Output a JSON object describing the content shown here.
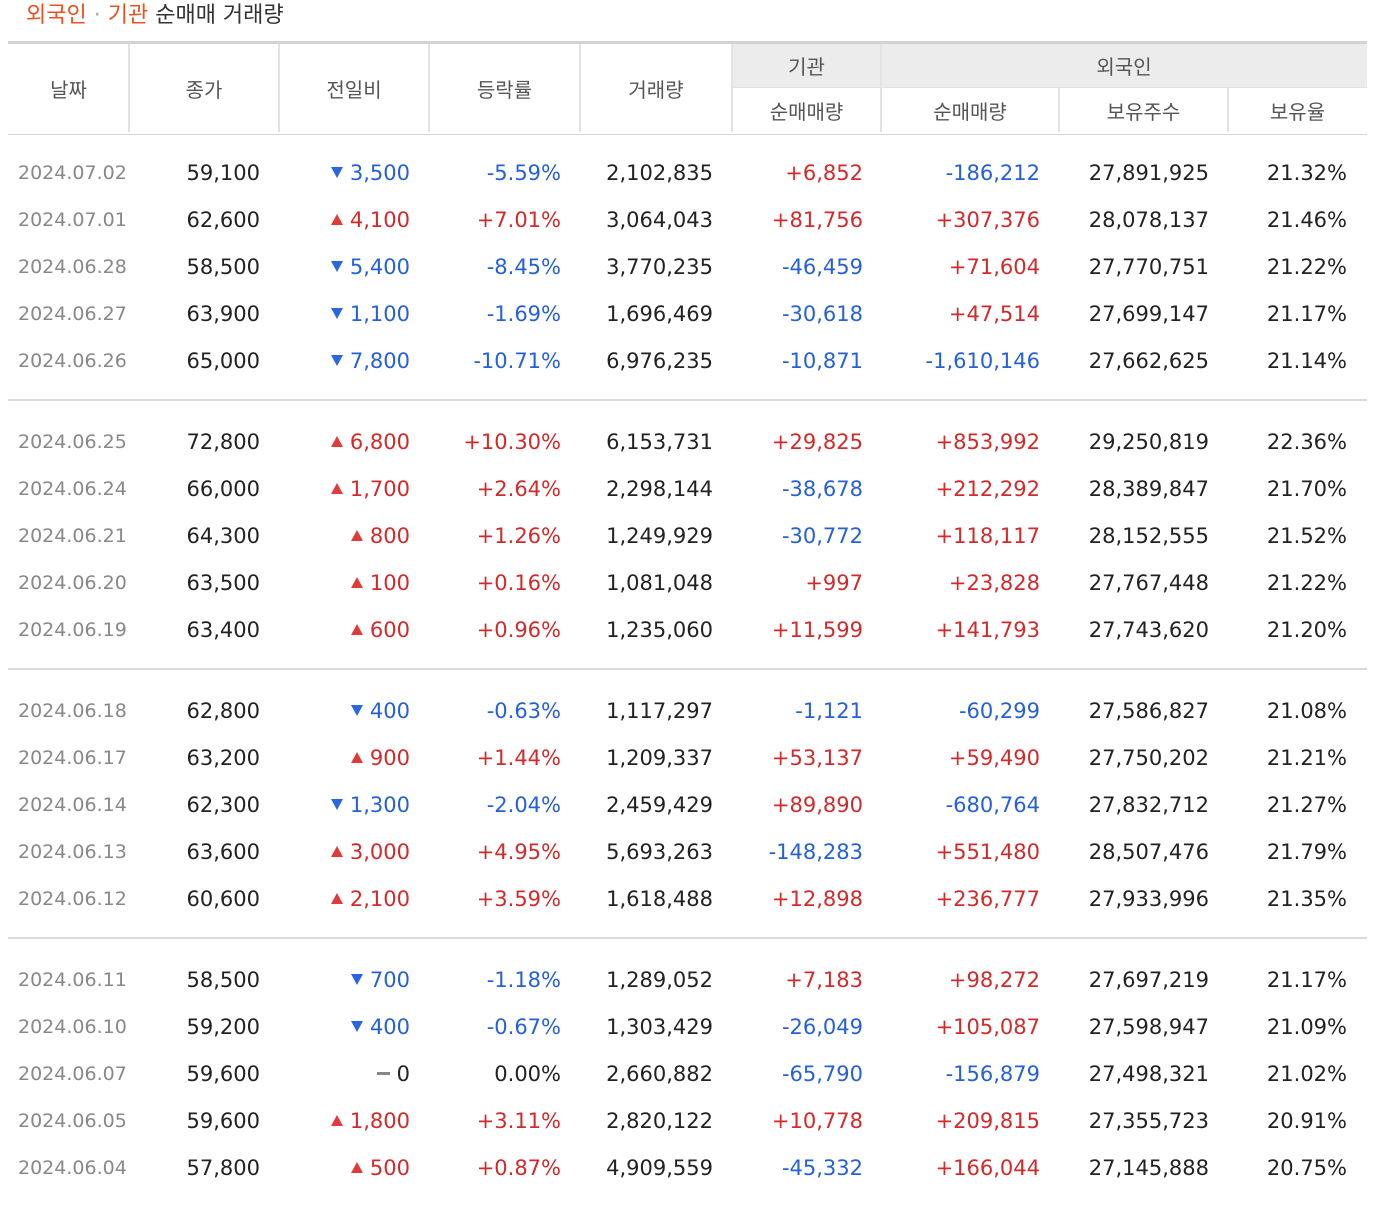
{
  "title": {
    "foreigner": "외국인",
    "dot": "·",
    "institution": "기관",
    "rest": "순매매 거래량"
  },
  "headers": {
    "date": "날짜",
    "close": "종가",
    "change": "전일비",
    "rate": "등락률",
    "volume": "거래량",
    "institution_group": "기관",
    "inst_net": "순매매량",
    "foreign_group": "외국인",
    "foreign_net": "순매매량",
    "holdings": "보유주수",
    "holding_ratio": "보유율"
  },
  "colors": {
    "up": "#d22a2a",
    "down": "#2660d8",
    "accent": "#e8521f"
  },
  "rows": [
    {
      "date": "2024.07.02",
      "close": "59,100",
      "dir": "down",
      "change": "3,500",
      "rate": "-5.59%",
      "volume": "2,102,835",
      "inst": "+6,852",
      "foreign": "-186,212",
      "holdings": "27,891,925",
      "ratio": "21.32%"
    },
    {
      "date": "2024.07.01",
      "close": "62,600",
      "dir": "up",
      "change": "4,100",
      "rate": "+7.01%",
      "volume": "3,064,043",
      "inst": "+81,756",
      "foreign": "+307,376",
      "holdings": "28,078,137",
      "ratio": "21.46%"
    },
    {
      "date": "2024.06.28",
      "close": "58,500",
      "dir": "down",
      "change": "5,400",
      "rate": "-8.45%",
      "volume": "3,770,235",
      "inst": "-46,459",
      "foreign": "+71,604",
      "holdings": "27,770,751",
      "ratio": "21.22%"
    },
    {
      "date": "2024.06.27",
      "close": "63,900",
      "dir": "down",
      "change": "1,100",
      "rate": "-1.69%",
      "volume": "1,696,469",
      "inst": "-30,618",
      "foreign": "+47,514",
      "holdings": "27,699,147",
      "ratio": "21.17%"
    },
    {
      "date": "2024.06.26",
      "close": "65,000",
      "dir": "down",
      "change": "7,800",
      "rate": "-10.71%",
      "volume": "6,976,235",
      "inst": "-10,871",
      "foreign": "-1,610,146",
      "holdings": "27,662,625",
      "ratio": "21.14%"
    },
    {
      "date": "2024.06.25",
      "close": "72,800",
      "dir": "up",
      "change": "6,800",
      "rate": "+10.30%",
      "volume": "6,153,731",
      "inst": "+29,825",
      "foreign": "+853,992",
      "holdings": "29,250,819",
      "ratio": "22.36%"
    },
    {
      "date": "2024.06.24",
      "close": "66,000",
      "dir": "up",
      "change": "1,700",
      "rate": "+2.64%",
      "volume": "2,298,144",
      "inst": "-38,678",
      "foreign": "+212,292",
      "holdings": "28,389,847",
      "ratio": "21.70%"
    },
    {
      "date": "2024.06.21",
      "close": "64,300",
      "dir": "up",
      "change": "800",
      "rate": "+1.26%",
      "volume": "1,249,929",
      "inst": "-30,772",
      "foreign": "+118,117",
      "holdings": "28,152,555",
      "ratio": "21.52%"
    },
    {
      "date": "2024.06.20",
      "close": "63,500",
      "dir": "up",
      "change": "100",
      "rate": "+0.16%",
      "volume": "1,081,048",
      "inst": "+997",
      "foreign": "+23,828",
      "holdings": "27,767,448",
      "ratio": "21.22%"
    },
    {
      "date": "2024.06.19",
      "close": "63,400",
      "dir": "up",
      "change": "600",
      "rate": "+0.96%",
      "volume": "1,235,060",
      "inst": "+11,599",
      "foreign": "+141,793",
      "holdings": "27,743,620",
      "ratio": "21.20%"
    },
    {
      "date": "2024.06.18",
      "close": "62,800",
      "dir": "down",
      "change": "400",
      "rate": "-0.63%",
      "volume": "1,117,297",
      "inst": "-1,121",
      "foreign": "-60,299",
      "holdings": "27,586,827",
      "ratio": "21.08%"
    },
    {
      "date": "2024.06.17",
      "close": "63,200",
      "dir": "up",
      "change": "900",
      "rate": "+1.44%",
      "volume": "1,209,337",
      "inst": "+53,137",
      "foreign": "+59,490",
      "holdings": "27,750,202",
      "ratio": "21.21%"
    },
    {
      "date": "2024.06.14",
      "close": "62,300",
      "dir": "down",
      "change": "1,300",
      "rate": "-2.04%",
      "volume": "2,459,429",
      "inst": "+89,890",
      "foreign": "-680,764",
      "holdings": "27,832,712",
      "ratio": "21.27%"
    },
    {
      "date": "2024.06.13",
      "close": "63,600",
      "dir": "up",
      "change": "3,000",
      "rate": "+4.95%",
      "volume": "5,693,263",
      "inst": "-148,283",
      "foreign": "+551,480",
      "holdings": "28,507,476",
      "ratio": "21.79%"
    },
    {
      "date": "2024.06.12",
      "close": "60,600",
      "dir": "up",
      "change": "2,100",
      "rate": "+3.59%",
      "volume": "1,618,488",
      "inst": "+12,898",
      "foreign": "+236,777",
      "holdings": "27,933,996",
      "ratio": "21.35%"
    },
    {
      "date": "2024.06.11",
      "close": "58,500",
      "dir": "down",
      "change": "700",
      "rate": "-1.18%",
      "volume": "1,289,052",
      "inst": "+7,183",
      "foreign": "+98,272",
      "holdings": "27,697,219",
      "ratio": "21.17%"
    },
    {
      "date": "2024.06.10",
      "close": "59,200",
      "dir": "down",
      "change": "400",
      "rate": "-0.67%",
      "volume": "1,303,429",
      "inst": "-26,049",
      "foreign": "+105,087",
      "holdings": "27,598,947",
      "ratio": "21.09%"
    },
    {
      "date": "2024.06.07",
      "close": "59,600",
      "dir": "flat",
      "change": "0",
      "rate": "0.00%",
      "volume": "2,660,882",
      "inst": "-65,790",
      "foreign": "-156,879",
      "holdings": "27,498,321",
      "ratio": "21.02%"
    },
    {
      "date": "2024.06.05",
      "close": "59,600",
      "dir": "up",
      "change": "1,800",
      "rate": "+3.11%",
      "volume": "2,820,122",
      "inst": "+10,778",
      "foreign": "+209,815",
      "holdings": "27,355,723",
      "ratio": "20.91%"
    },
    {
      "date": "2024.06.04",
      "close": "57,800",
      "dir": "up",
      "change": "500",
      "rate": "+0.87%",
      "volume": "4,909,559",
      "inst": "-45,332",
      "foreign": "+166,044",
      "holdings": "27,145,888",
      "ratio": "20.75%"
    }
  ]
}
